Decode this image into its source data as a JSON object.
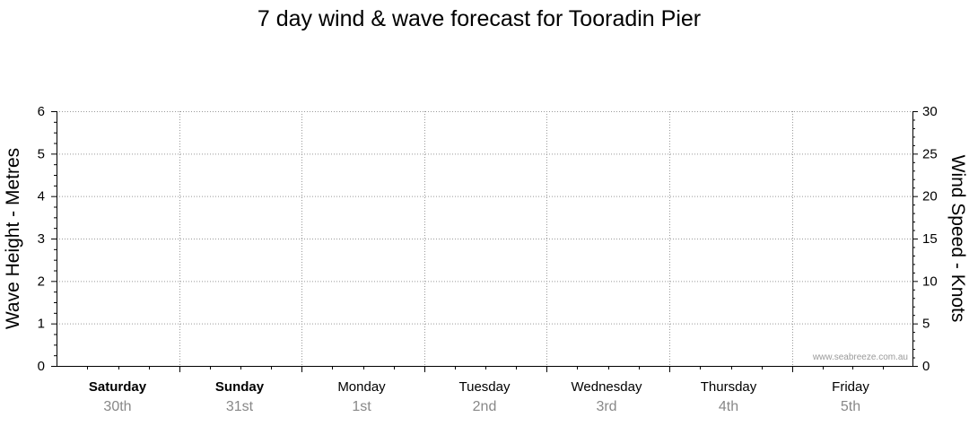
{
  "chart_data": {
    "type": "line",
    "title": "7 day wind & wave forecast for Tooradin Pier",
    "y_left": {
      "label": "Wave Height - Metres",
      "ylim": [
        0,
        6
      ],
      "ticks": [
        0,
        1,
        2,
        3,
        4,
        5,
        6
      ]
    },
    "y_right": {
      "label": "Wind Speed - Knots",
      "ylim": [
        0,
        30
      ],
      "ticks": [
        0,
        5,
        10,
        15,
        20,
        25,
        30
      ]
    },
    "days": [
      {
        "day": "Saturday",
        "date": "30th",
        "bold": true
      },
      {
        "day": "Sunday",
        "date": "31st",
        "bold": true
      },
      {
        "day": "Monday",
        "date": "1st",
        "bold": false
      },
      {
        "day": "Tuesday",
        "date": "2nd",
        "bold": false
      },
      {
        "day": "Wednesday",
        "date": "3rd",
        "bold": false
      },
      {
        "day": "Thursday",
        "date": "4th",
        "bold": false
      },
      {
        "day": "Friday",
        "date": "5th",
        "bold": false
      }
    ],
    "series": [],
    "grid": true,
    "watermark": "www.seabreeze.com.au",
    "colors": {
      "grid": "#999999",
      "axis": "#000000",
      "date_label": "#888888"
    }
  }
}
